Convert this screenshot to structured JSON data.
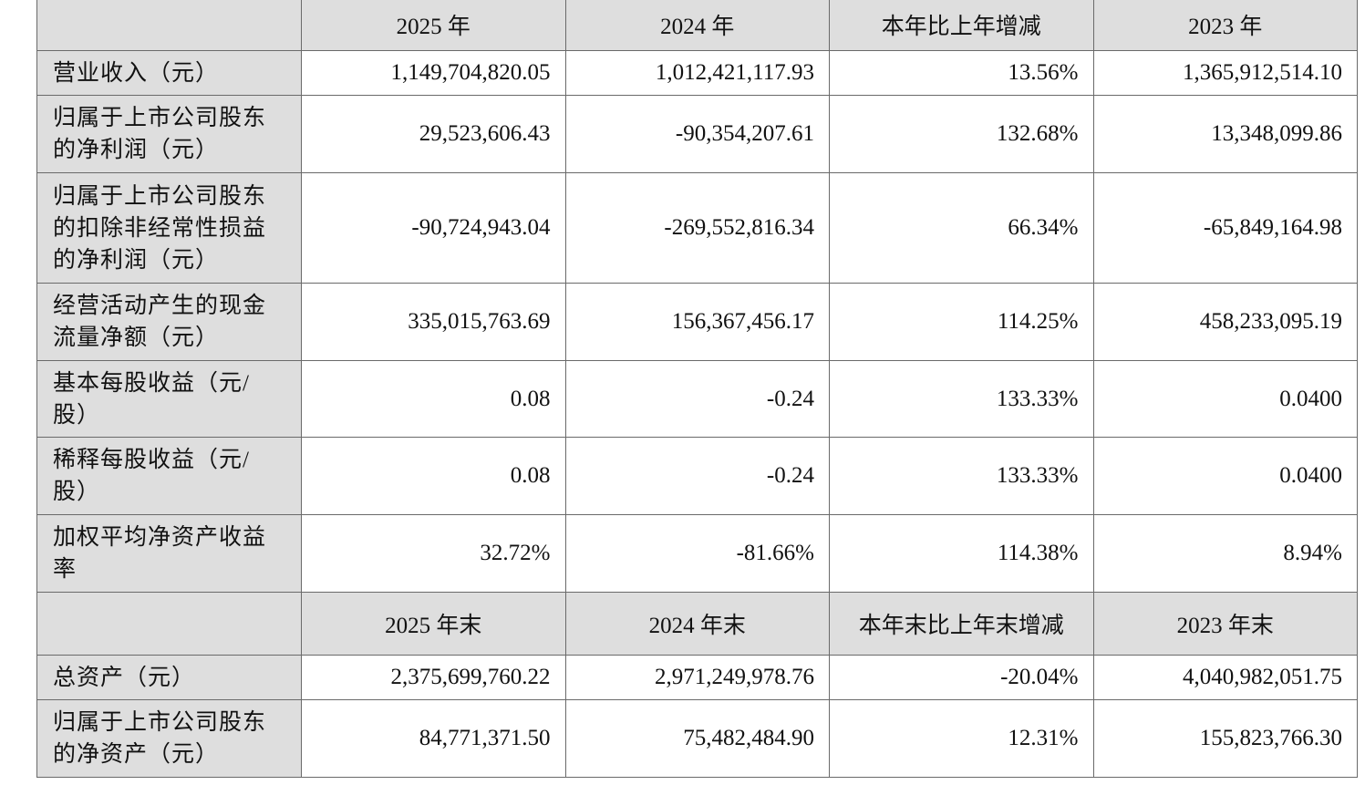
{
  "header1": [
    "",
    "2025 年",
    "2024 年",
    "本年比上年增减",
    "2023 年"
  ],
  "rows1": [
    {
      "label": "营业收入（元）",
      "values": [
        "1,149,704,820.05",
        "1,012,421,117.93",
        "13.56%",
        "1,365,912,514.10"
      ]
    },
    {
      "label": "归属于上市公司股东的净利润（元）",
      "values": [
        "29,523,606.43",
        "-90,354,207.61",
        "132.68%",
        "13,348,099.86"
      ]
    },
    {
      "label": "归属于上市公司股东的扣除非经常性损益的净利润（元）",
      "values": [
        "-90,724,943.04",
        "-269,552,816.34",
        "66.34%",
        "-65,849,164.98"
      ]
    },
    {
      "label": "经营活动产生的现金流量净额（元）",
      "values": [
        "335,015,763.69",
        "156,367,456.17",
        "114.25%",
        "458,233,095.19"
      ]
    },
    {
      "label": "基本每股收益（元/股）",
      "values": [
        "0.08",
        "-0.24",
        "133.33%",
        "0.0400"
      ]
    },
    {
      "label": "稀释每股收益（元/股）",
      "values": [
        "0.08",
        "-0.24",
        "133.33%",
        "0.0400"
      ]
    },
    {
      "label": "加权平均净资产收益率",
      "values": [
        "32.72%",
        "-81.66%",
        "114.38%",
        "8.94%"
      ]
    }
  ],
  "header2": [
    "",
    "2025 年末",
    "2024 年末",
    "本年末比上年末增减",
    "2023 年末"
  ],
  "rows2": [
    {
      "label": "总资产（元）",
      "values": [
        "2,375,699,760.22",
        "2,971,249,978.76",
        "-20.04%",
        "4,040,982,051.75"
      ]
    },
    {
      "label": "归属于上市公司股东的净资产（元）",
      "values": [
        "84,771,371.50",
        "75,482,484.90",
        "12.31%",
        "155,823,766.30"
      ]
    }
  ],
  "colors": {
    "header_bg": "#dedede",
    "border": "#6a6a6a"
  }
}
